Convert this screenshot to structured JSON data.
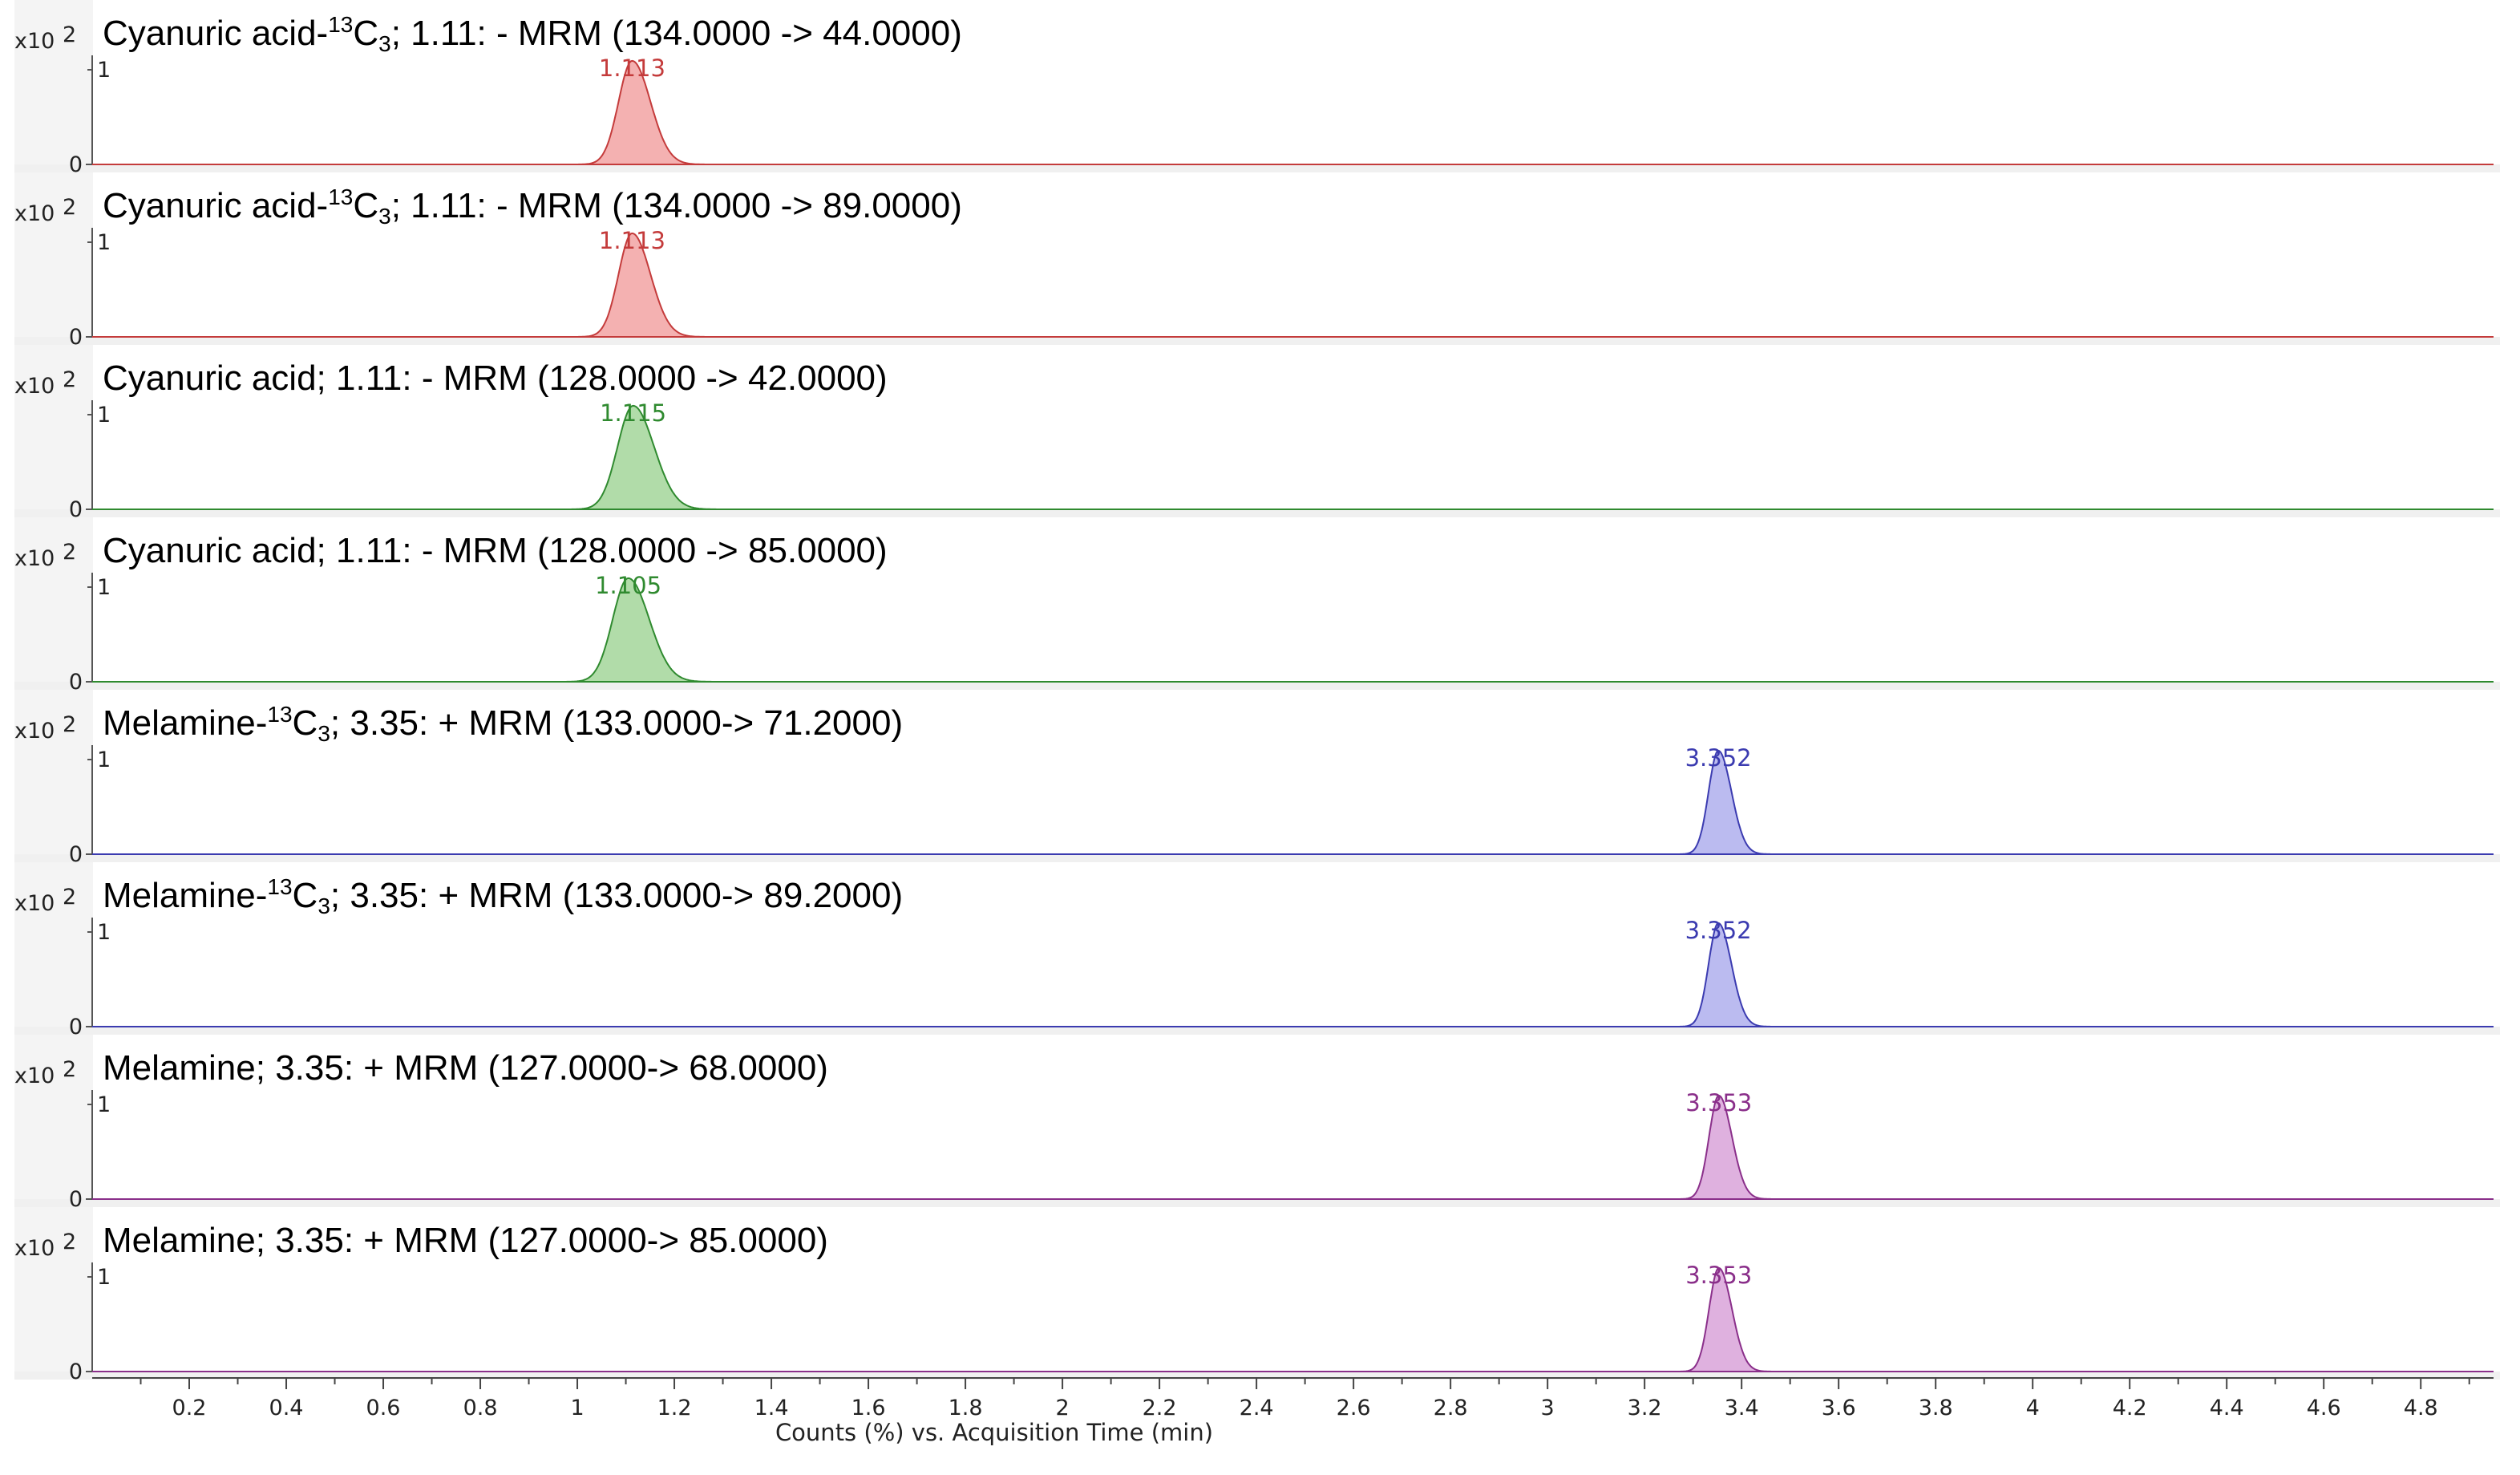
{
  "chart_data": {
    "type": "line",
    "xlabel": "Counts (%) vs. Acquisition Time (min)",
    "xlim": [
      0,
      4.95
    ],
    "xticks": [
      "0.2",
      "0.4",
      "0.6",
      "0.8",
      "1",
      "1.2",
      "1.4",
      "1.6",
      "1.8",
      "2",
      "2.2",
      "2.4",
      "2.6",
      "2.8",
      "3",
      "3.2",
      "3.4",
      "3.6",
      "3.8",
      "4",
      "4.2",
      "4.4",
      "4.6",
      "4.8"
    ],
    "y_scale_label": "x10",
    "y_scale_exponent": "2",
    "ymin_label": "0",
    "ymax_label": "1",
    "ylim": [
      0,
      1.1
    ],
    "grid": false,
    "series": [
      {
        "title_main": "Cyanuric acid-",
        "title_sup": "13",
        "title_c": "C",
        "title_sub": "3",
        "title_rest": "; 1.11: - MRM (134.0000 -> 44.0000)",
        "peak_label": "1.113",
        "rt": 1.113,
        "height": 1.0,
        "sigma": 0.028,
        "color": "#c43b3b",
        "fill": "#f3a9a9"
      },
      {
        "title_main": "Cyanuric acid-",
        "title_sup": "13",
        "title_c": "C",
        "title_sub": "3",
        "title_rest": "; 1.11: - MRM (134.0000 -> 89.0000)",
        "peak_label": "1.113",
        "rt": 1.113,
        "height": 1.0,
        "sigma": 0.028,
        "color": "#c43b3b",
        "fill": "#f3a9a9"
      },
      {
        "title_main": "Cyanuric acid; 1.11: - MRM (128.0000 -> 42.0000)",
        "title_sup": "",
        "title_c": "",
        "title_sub": "",
        "title_rest": "",
        "peak_label": "1.115",
        "rt": 1.115,
        "height": 1.0,
        "sigma": 0.032,
        "color": "#2f8a2f",
        "fill": "#a8d8a0"
      },
      {
        "title_main": "Cyanuric acid; 1.11: - MRM (128.0000 -> 85.0000)",
        "title_sup": "",
        "title_c": "",
        "title_sub": "",
        "title_rest": "",
        "peak_label": "1.105",
        "rt": 1.105,
        "height": 1.0,
        "sigma": 0.032,
        "color": "#2f8a2f",
        "fill": "#a8d8a0"
      },
      {
        "title_main": "Melamine-",
        "title_sup": "13",
        "title_c": "C",
        "title_sub": "3",
        "title_rest": "; 3.35: + MRM (133.0000-> 71.2000)",
        "peak_label": "3.352",
        "rt": 3.352,
        "height": 1.0,
        "sigma": 0.02,
        "color": "#3b3bb0",
        "fill": "#b4b4ee"
      },
      {
        "title_main": "Melamine-",
        "title_sup": "13",
        "title_c": "C",
        "title_sub": "3",
        "title_rest": "; 3.35: + MRM (133.0000-> 89.2000)",
        "peak_label": "3.352",
        "rt": 3.352,
        "height": 1.0,
        "sigma": 0.02,
        "color": "#3b3bb0",
        "fill": "#b4b4ee"
      },
      {
        "title_main": "Melamine; 3.35: + MRM (127.0000-> 68.0000)",
        "title_sup": "",
        "title_c": "",
        "title_sub": "",
        "title_rest": "",
        "peak_label": "3.353",
        "rt": 3.353,
        "height": 1.0,
        "sigma": 0.02,
        "color": "#8a2f8a",
        "fill": "#dba8db"
      },
      {
        "title_main": "Melamine; 3.35: + MRM (127.0000-> 85.0000)",
        "title_sup": "",
        "title_c": "",
        "title_sub": "",
        "title_rest": "",
        "peak_label": "3.353",
        "rt": 3.353,
        "height": 1.0,
        "sigma": 0.02,
        "color": "#8a2f8a",
        "fill": "#dba8db"
      }
    ]
  }
}
